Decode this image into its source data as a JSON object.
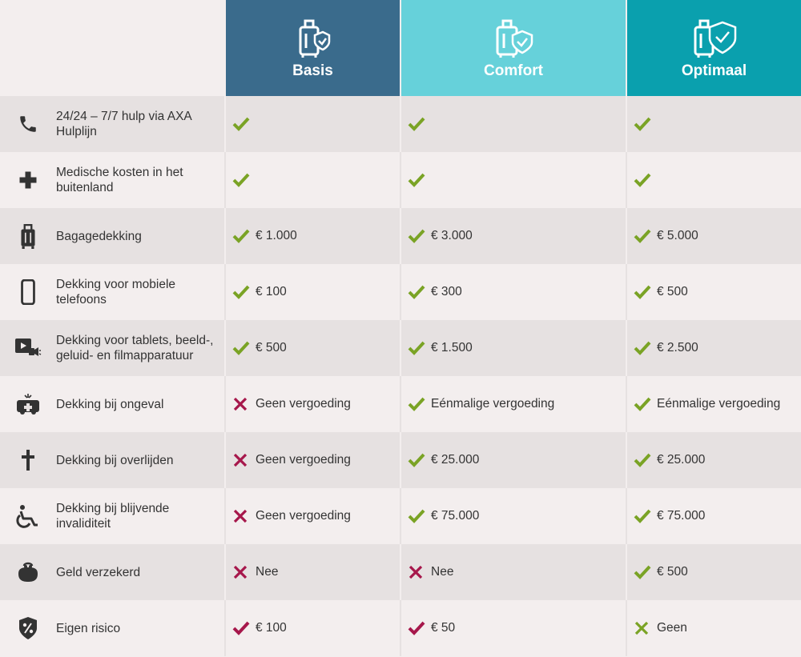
{
  "colors": {
    "basis": "#3a6b8c",
    "comfort": "#66d1da",
    "optimaal": "#0aa0ae",
    "check_green": "#7aa325",
    "cross_red": "#a6174b",
    "check_red": "#a6174b",
    "cross_green": "#7aa325",
    "icon": "#333333"
  },
  "plans": [
    {
      "name": "Basis",
      "icon": "luggage-shield-icon"
    },
    {
      "name": "Comfort",
      "icon": "luggage-shield-icon"
    },
    {
      "name": "Optimaal",
      "icon": "luggage-shield-icon"
    }
  ],
  "rows": [
    {
      "icon": "phone-icon",
      "label": "24/24 – 7/7 hulp via AXA Hulplijn",
      "cells": [
        {
          "mark": "check",
          "text": ""
        },
        {
          "mark": "check",
          "text": ""
        },
        {
          "mark": "check",
          "text": ""
        }
      ]
    },
    {
      "icon": "medical-cross-icon",
      "label": "Medische kosten in het buitenland",
      "cells": [
        {
          "mark": "check",
          "text": ""
        },
        {
          "mark": "check",
          "text": ""
        },
        {
          "mark": "check",
          "text": ""
        }
      ]
    },
    {
      "icon": "suitcase-icon",
      "label": "Bagagedekking",
      "cells": [
        {
          "mark": "check",
          "text": "€ 1.000"
        },
        {
          "mark": "check",
          "text": "€ 3.000"
        },
        {
          "mark": "check",
          "text": "€ 5.000"
        }
      ]
    },
    {
      "icon": "mobile-phone-icon",
      "label": "Dekking voor mobiele telefoons",
      "cells": [
        {
          "mark": "check",
          "text": "€ 100"
        },
        {
          "mark": "check",
          "text": "€ 300"
        },
        {
          "mark": "check",
          "text": "€ 500"
        }
      ]
    },
    {
      "icon": "media-devices-icon",
      "label": "Dekking voor tablets, beeld-, geluid- en filmapparatuur",
      "cells": [
        {
          "mark": "check",
          "text": "€ 500"
        },
        {
          "mark": "check",
          "text": "€ 1.500"
        },
        {
          "mark": "check",
          "text": "€ 2.500"
        }
      ]
    },
    {
      "icon": "ambulance-icon",
      "label": "Dekking bij ongeval",
      "cells": [
        {
          "mark": "cross",
          "text": "Geen vergoeding"
        },
        {
          "mark": "check",
          "text": "Eénmalige vergoeding"
        },
        {
          "mark": "check",
          "text": "Eénmalige vergoeding"
        }
      ]
    },
    {
      "icon": "grave-cross-icon",
      "label": "Dekking bij overlijden",
      "cells": [
        {
          "mark": "cross",
          "text": "Geen vergoeding"
        },
        {
          "mark": "check",
          "text": "€ 25.000"
        },
        {
          "mark": "check",
          "text": "€ 25.000"
        }
      ]
    },
    {
      "icon": "wheelchair-icon",
      "label": "Dekking bij blijvende invaliditeit",
      "cells": [
        {
          "mark": "cross",
          "text": "Geen vergoeding"
        },
        {
          "mark": "check",
          "text": "€ 75.000"
        },
        {
          "mark": "check",
          "text": "€ 75.000"
        }
      ]
    },
    {
      "icon": "purse-icon",
      "label": "Geld verzekerd",
      "cells": [
        {
          "mark": "cross",
          "text": "Nee"
        },
        {
          "mark": "cross",
          "text": "Nee"
        },
        {
          "mark": "check",
          "text": "€ 500"
        }
      ]
    },
    {
      "icon": "percent-shield-icon",
      "label": "Eigen risico",
      "cells": [
        {
          "mark": "check-red",
          "text": "€ 100"
        },
        {
          "mark": "check-red",
          "text": "€ 50"
        },
        {
          "mark": "cross-green",
          "text": "Geen"
        }
      ]
    }
  ]
}
